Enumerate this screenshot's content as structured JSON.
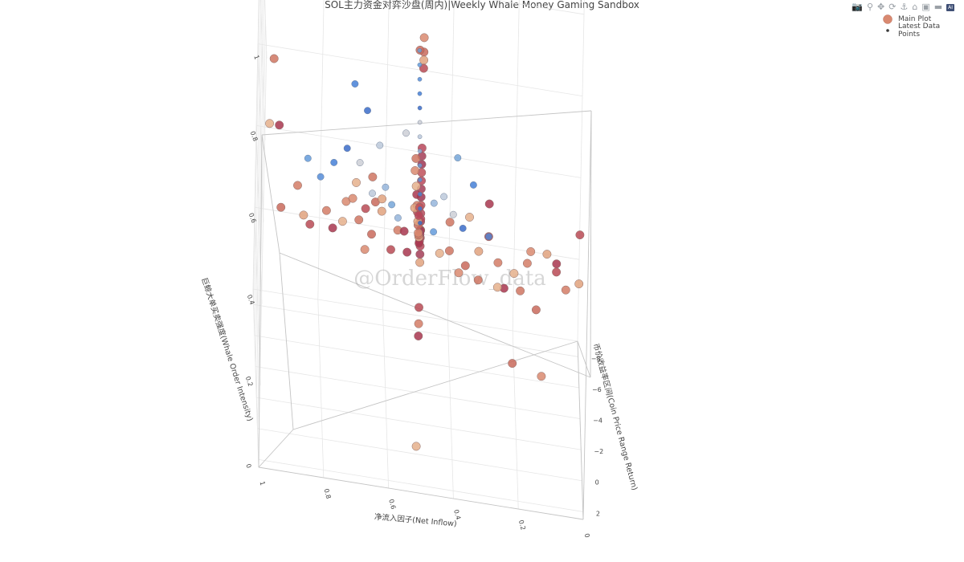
{
  "chart_title": "SOL主力资金对弈沙盘(周内)|Weekly Whale Money Gaming Sandbox",
  "watermark": "@OrderFlow_data",
  "legend": [
    {
      "name": "Main Plot",
      "color": "#d98970"
    },
    {
      "name": "Latest Data Points",
      "color": "#3a3a3a"
    }
  ],
  "modebar": [
    {
      "name": "camera-icon",
      "glyph": "📷"
    },
    {
      "name": "zoom-icon",
      "glyph": "⚲"
    },
    {
      "name": "pan-icon",
      "glyph": "✥"
    },
    {
      "name": "orbit-icon",
      "glyph": "⟳"
    },
    {
      "name": "turntable-icon",
      "glyph": "⚓"
    },
    {
      "name": "home-icon",
      "glyph": "⌂"
    },
    {
      "name": "reset-camera-icon",
      "glyph": "▣"
    },
    {
      "name": "hover-icon",
      "glyph": "▬"
    },
    {
      "name": "plotly-logo-icon",
      "glyph": "AI"
    }
  ],
  "chart_data": {
    "type": "scatter3d",
    "title": "SOL主力资金对弈沙盘(周内)|Weekly Whale Money Gaming Sandbox",
    "axes": {
      "x": {
        "label": "净流入因子(Net Inflow)",
        "range": [
          0,
          1
        ],
        "ticks": [
          0,
          0.2,
          0.4,
          0.6,
          0.8,
          1
        ]
      },
      "y": {
        "label": "币价收益率区间(Coin Price Range Return)",
        "range": [
          -9,
          2.5
        ],
        "ticks": [
          -8,
          -6,
          -4,
          -2,
          0,
          2
        ],
        "tick_labels": [
          "−8",
          "−6",
          "−4",
          "−2",
          "0",
          "2"
        ]
      },
      "z": {
        "label": "巨鲸大单买卖强度(Whale Order Intensity)",
        "range": [
          0,
          1
        ],
        "ticks": [
          0,
          0.2,
          0.4,
          0.6,
          0.8,
          1
        ]
      }
    },
    "grid": true,
    "legend_position": "top-right",
    "series": [
      {
        "name": "Main Plot",
        "points": [
          [
            0.51,
            -0.5,
            1.0
          ],
          [
            0.51,
            -0.5,
            0.965
          ],
          [
            0.51,
            -0.5,
            0.945
          ],
          [
            0.51,
            -0.5,
            0.925
          ],
          [
            0.51,
            -0.5,
            0.73
          ],
          [
            0.51,
            -0.5,
            0.71
          ],
          [
            0.51,
            -0.5,
            0.69
          ],
          [
            0.51,
            -0.5,
            0.67
          ],
          [
            0.51,
            -0.5,
            0.65
          ],
          [
            0.51,
            -0.5,
            0.63
          ],
          [
            0.51,
            -0.5,
            0.61
          ],
          [
            0.51,
            -0.5,
            0.59
          ],
          [
            0.51,
            -0.5,
            0.57
          ],
          [
            0.51,
            -0.5,
            0.55
          ],
          [
            0.51,
            -0.5,
            0.53
          ],
          [
            0.51,
            -0.5,
            0.51
          ],
          [
            0.51,
            -0.5,
            0.49
          ],
          [
            0.51,
            -0.5,
            0.47
          ],
          [
            0.51,
            -0.5,
            0.45
          ],
          [
            0.51,
            -0.5,
            0.34
          ],
          [
            0.51,
            -0.5,
            0.3
          ],
          [
            0.51,
            -0.5,
            0.27
          ],
          [
            0.51,
            -0.5,
            0.0
          ],
          [
            0.51,
            -0.2,
            0.54
          ],
          [
            0.51,
            -0.4,
            0.56
          ],
          [
            0.51,
            -0.7,
            0.52
          ],
          [
            0.51,
            -1.0,
            0.5
          ],
          [
            0.51,
            -1.3,
            0.48
          ],
          [
            0.51,
            -1.6,
            0.46
          ],
          [
            0.51,
            -2.0,
            0.44
          ],
          [
            0.51,
            -2.4,
            0.44
          ],
          [
            0.51,
            -2.8,
            0.43
          ],
          [
            0.51,
            -3.2,
            0.42
          ],
          [
            0.51,
            -3.7,
            0.42
          ],
          [
            0.51,
            -4.2,
            0.41
          ],
          [
            0.51,
            -4.8,
            0.41
          ],
          [
            0.51,
            -5.5,
            0.4
          ],
          [
            0.51,
            -6.2,
            0.4
          ],
          [
            0.51,
            -7.0,
            0.39
          ],
          [
            0.51,
            -8.0,
            0.42
          ],
          [
            0.51,
            -8.8,
            0.36
          ],
          [
            0.51,
            -5.5,
            0.78
          ],
          [
            0.51,
            -8.5,
            0.28
          ],
          [
            0.51,
            -2.2,
            0.52
          ],
          [
            0.51,
            -3.0,
            0.47
          ],
          [
            0.95,
            -0.5,
            0.73
          ],
          [
            0.98,
            -0.5,
            0.73
          ],
          [
            0.97,
            -0.5,
            0.89
          ],
          [
            0.74,
            -0.5,
            0.57
          ],
          [
            0.94,
            -0.5,
            0.53
          ],
          [
            0.87,
            -0.5,
            0.52
          ],
          [
            0.85,
            -0.5,
            0.5
          ],
          [
            0.8,
            -0.5,
            0.54
          ],
          [
            0.78,
            -0.5,
            0.5
          ],
          [
            0.75,
            -0.5,
            0.52
          ],
          [
            0.7,
            -0.5,
            0.53
          ],
          [
            0.68,
            -0.5,
            0.46
          ],
          [
            0.66,
            -0.5,
            0.5
          ],
          [
            0.63,
            -0.5,
            0.56
          ],
          [
            0.6,
            -0.5,
            0.47
          ],
          [
            0.58,
            -0.5,
            0.52
          ],
          [
            0.56,
            -0.5,
            0.52
          ],
          [
            0.71,
            -0.5,
            0.62
          ],
          [
            0.66,
            -0.5,
            0.64
          ],
          [
            0.72,
            -0.5,
            0.58
          ],
          [
            0.65,
            -0.5,
            0.58
          ],
          [
            0.63,
            -0.5,
            0.59
          ],
          [
            0.68,
            -0.5,
            0.56
          ],
          [
            0.89,
            -0.5,
            0.59
          ],
          [
            0.55,
            -0.5,
            0.47
          ],
          [
            0.45,
            -0.5,
            0.48
          ],
          [
            0.42,
            -0.5,
            0.49
          ],
          [
            0.39,
            -0.5,
            0.44
          ],
          [
            0.37,
            -0.5,
            0.46
          ],
          [
            0.33,
            -0.5,
            0.5
          ],
          [
            0.3,
            -0.5,
            0.54
          ],
          [
            0.27,
            -0.5,
            0.48
          ],
          [
            0.25,
            -0.5,
            0.42
          ],
          [
            0.22,
            -0.5,
            0.46
          ],
          [
            0.2,
            -0.5,
            0.42
          ],
          [
            0.17,
            -0.5,
            0.52
          ],
          [
            0.15,
            -0.5,
            0.38
          ],
          [
            0.12,
            -0.5,
            0.52
          ],
          [
            0.09,
            -0.5,
            0.48
          ],
          [
            0.06,
            -0.5,
            0.44
          ],
          [
            0.3,
            -0.5,
            0.62
          ],
          [
            0.36,
            -0.5,
            0.58
          ],
          [
            0.42,
            -0.5,
            0.56
          ],
          [
            0.13,
            -0.5,
            0.22
          ],
          [
            0.22,
            -0.5,
            0.24
          ],
          [
            0.02,
            -0.5,
            0.46
          ],
          [
            0.02,
            -0.5,
            0.58
          ],
          [
            0.18,
            -0.5,
            0.49
          ],
          [
            0.09,
            -0.5,
            0.5
          ],
          [
            0.27,
            -0.5,
            0.42
          ],
          [
            0.33,
            -0.5,
            0.43
          ]
        ]
      },
      {
        "name": "Latest Data Points",
        "points": [
          [
            0.51,
            -1.2,
            0.52
          ],
          [
            0.51,
            -1.6,
            0.54
          ],
          [
            0.51,
            -2.0,
            0.56
          ],
          [
            0.51,
            -2.4,
            0.58
          ],
          [
            0.51,
            -2.8,
            0.6
          ],
          [
            0.51,
            -3.2,
            0.62
          ],
          [
            0.51,
            -3.6,
            0.64
          ],
          [
            0.51,
            -4.0,
            0.66
          ],
          [
            0.51,
            -4.4,
            0.68
          ],
          [
            0.51,
            -4.8,
            0.7
          ],
          [
            0.51,
            -5.2,
            0.72
          ],
          [
            0.51,
            -5.6,
            0.74
          ],
          [
            0.51,
            -6.0,
            0.76
          ],
          [
            0.47,
            -0.5,
            0.6
          ],
          [
            0.44,
            -0.5,
            0.62
          ],
          [
            0.41,
            -0.5,
            0.58
          ],
          [
            0.38,
            -0.5,
            0.55
          ],
          [
            0.35,
            -0.5,
            0.66
          ],
          [
            0.3,
            -0.5,
            0.54
          ],
          [
            0.47,
            -0.5,
            0.53
          ],
          [
            0.4,
            -0.5,
            0.72
          ],
          [
            0.62,
            -0.5,
            0.62
          ],
          [
            0.66,
            -0.5,
            0.6
          ],
          [
            0.7,
            -0.5,
            0.67
          ],
          [
            0.74,
            -0.5,
            0.7
          ],
          [
            0.78,
            -0.5,
            0.66
          ],
          [
            0.82,
            -0.5,
            0.62
          ],
          [
            0.86,
            -0.5,
            0.66
          ],
          [
            0.6,
            -0.5,
            0.58
          ],
          [
            0.58,
            -0.5,
            0.55
          ],
          [
            0.64,
            -0.5,
            0.72
          ],
          [
            0.56,
            -0.5,
            0.76
          ],
          [
            0.68,
            -0.5,
            0.8
          ],
          [
            0.72,
            -0.5,
            0.86
          ]
        ]
      }
    ]
  }
}
